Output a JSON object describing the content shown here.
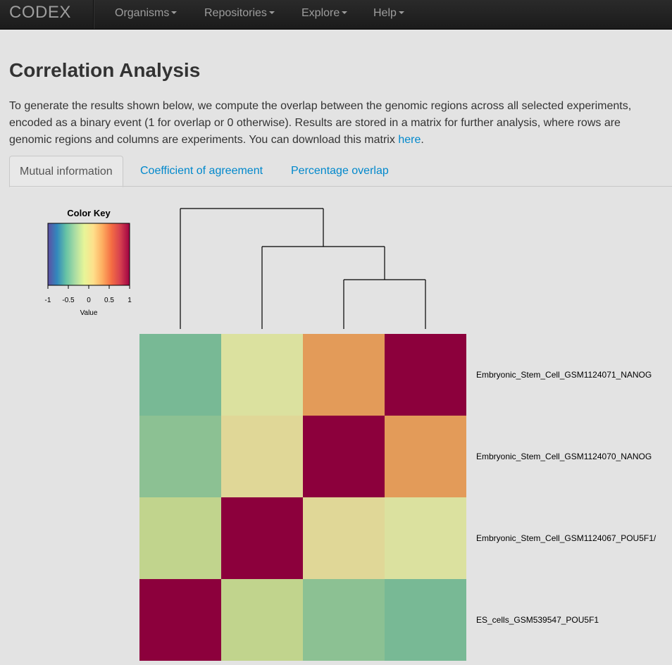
{
  "navbar": {
    "brand": "CODEX",
    "items": [
      {
        "label": "Organisms"
      },
      {
        "label": "Repositories"
      },
      {
        "label": "Explore"
      },
      {
        "label": "Help"
      }
    ]
  },
  "page": {
    "title": "Correlation Analysis",
    "description": "To generate the results shown below, we compute the overlap between the genomic regions across all selected experiments, encoded as a binary event (1 for overlap or 0 otherwise). Results are stored in a matrix for further analysis, where rows are genomic regions and columns are experiments. You can download this matrix ",
    "link_text": "here",
    "description_end": "."
  },
  "tabs": [
    {
      "label": "Mutual information",
      "active": true
    },
    {
      "label": "Coefficient of agreement",
      "active": false
    },
    {
      "label": "Percentage overlap",
      "active": false
    }
  ],
  "chart_data": {
    "type": "heatmap",
    "color_key": {
      "title": "Color Key",
      "xlabel": "Value",
      "ticks": [
        "-1",
        "-0.5",
        "0",
        "0.5",
        "1"
      ],
      "range": [
        -1,
        1
      ],
      "palette": [
        "#5e4fa2",
        "#3288bd",
        "#66c2a5",
        "#abdda4",
        "#e6f598",
        "#fee08b",
        "#fdae61",
        "#f46d43",
        "#d53e4f",
        "#9e0142"
      ]
    },
    "rows": [
      "Embryonic_Stem_Cell_GSM1124071_NANOG",
      "Embryonic_Stem_Cell_GSM1124070_NANOG",
      "Embryonic_Stem_Cell_GSM1124067_POU5F1/",
      "ES_cells_GSM539547_POU5F1"
    ],
    "cell_colors": [
      [
        "#78b995",
        "#dbe19f",
        "#e39b59",
        "#8c003c"
      ],
      [
        "#8cc193",
        "#e0d797",
        "#8c003c",
        "#e39b59"
      ],
      [
        "#c1d48d",
        "#8c003c",
        "#e0d797",
        "#dbe19f"
      ],
      [
        "#8c003c",
        "#c1d48d",
        "#8cc193",
        "#78b995"
      ]
    ],
    "dendrogram": "column tree: ((c4,(c3,(c2,c1))))"
  }
}
